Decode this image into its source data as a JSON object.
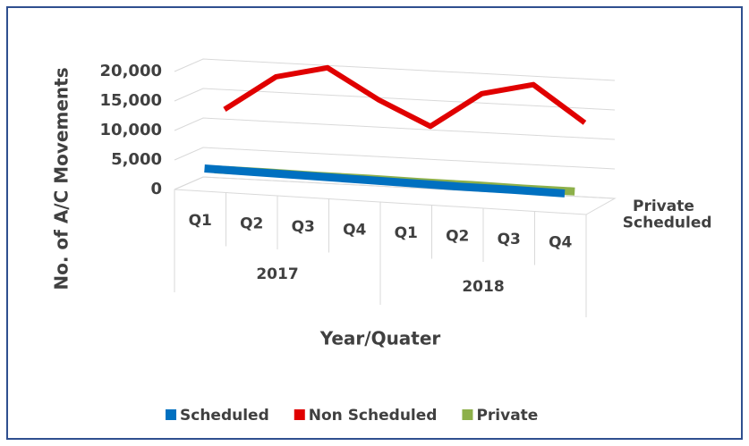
{
  "chart_data": {
    "type": "line3d",
    "y_label": "No. of A/C Movements",
    "x_label": "Year/Quater",
    "categories": [
      "Q1",
      "Q2",
      "Q3",
      "Q4",
      "Q1",
      "Q2",
      "Q3",
      "Q4"
    ],
    "groups": [
      {
        "name": "2017",
        "span": 4
      },
      {
        "name": "2018",
        "span": 4
      }
    ],
    "depth_labels": [
      "Private",
      "Scheduled"
    ],
    "series": [
      {
        "name": "Scheduled",
        "color": "#0070c0",
        "values": [
          3500,
          3400,
          3300,
          3200,
          3100,
          3000,
          3000,
          2900
        ]
      },
      {
        "name": "Non Scheduled",
        "color": "#e00000",
        "values": [
          12000,
          18000,
          20000,
          15000,
          11000,
          17000,
          19000,
          13000
        ]
      },
      {
        "name": "Private",
        "color": "#8db04a",
        "values": [
          2600,
          2600,
          2500,
          2500,
          2400,
          2400,
          2300,
          2300
        ]
      }
    ],
    "ylim": [
      0,
      20000
    ],
    "yticks": [
      0,
      {
        "value": 5000,
        "label": "5,000"
      },
      {
        "value": 10000,
        "label": "10,000"
      },
      {
        "value": 15000,
        "label": "15,000"
      },
      {
        "value": 20000,
        "label": "20,000"
      }
    ],
    "grid": true,
    "legend": "bottom"
  }
}
